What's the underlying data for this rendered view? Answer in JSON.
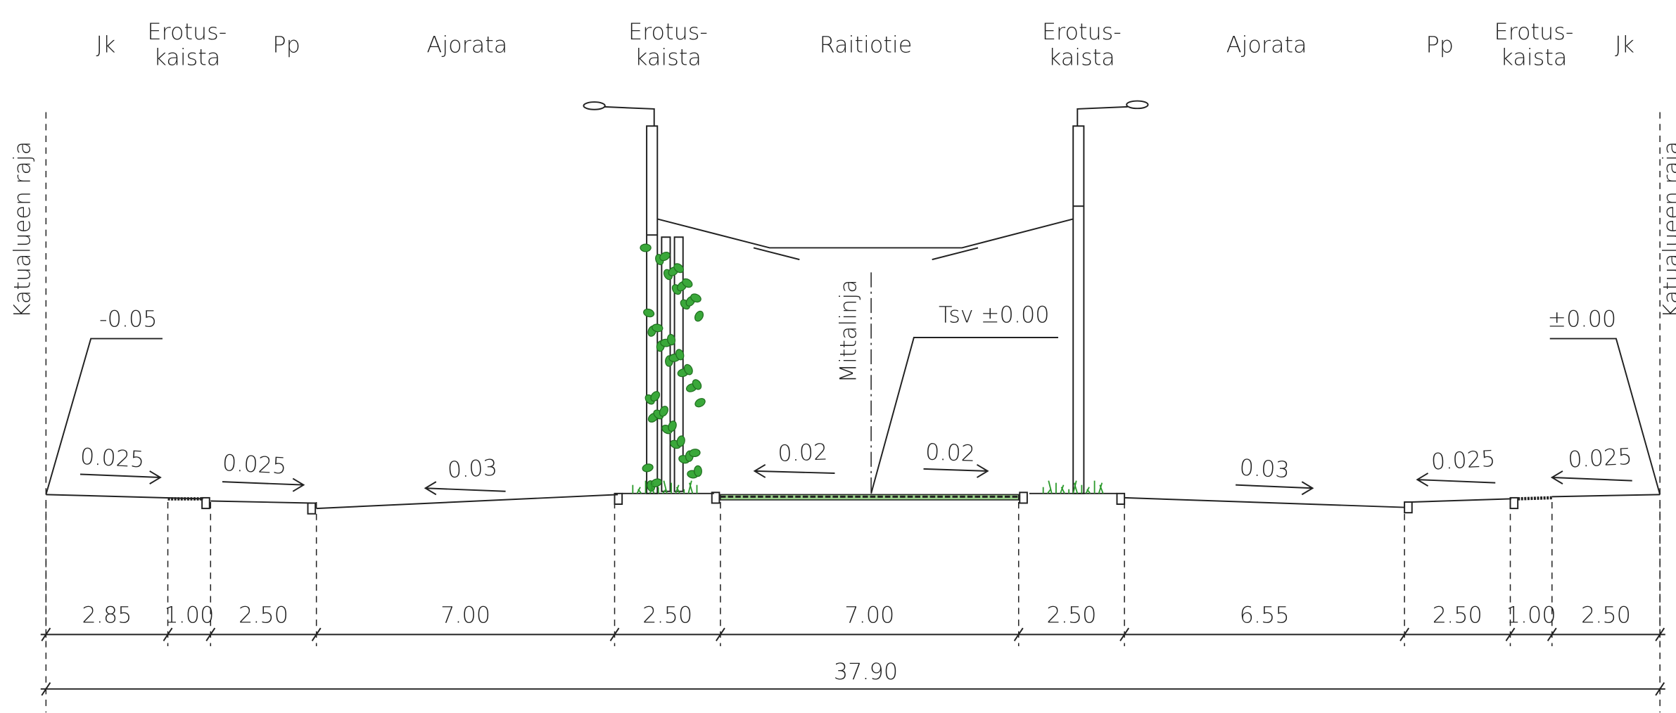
{
  "zones": [
    {
      "lines": [
        "Jk"
      ]
    },
    {
      "lines": [
        "Erotus-",
        "kaista"
      ]
    },
    {
      "lines": [
        "Pp"
      ]
    },
    {
      "lines": [
        "Ajorata"
      ]
    },
    {
      "lines": [
        "Erotus-",
        "kaista"
      ]
    },
    {
      "lines": [
        "Raitiotie"
      ]
    },
    {
      "lines": [
        "Erotus-",
        "kaista"
      ]
    },
    {
      "lines": [
        "Ajorata"
      ]
    },
    {
      "lines": [
        "Pp"
      ]
    },
    {
      "lines": [
        "Erotus-",
        "kaista"
      ]
    },
    {
      "lines": [
        "Jk"
      ]
    }
  ],
  "boundary_labels": [
    "Katualueen raja",
    "Katualueen raja"
  ],
  "elevations": [
    "-0.05",
    "Tsv ±0.00",
    "±0.00"
  ],
  "measure_line": "Mittalinja",
  "slopes": [
    "0.025",
    "0.025",
    "0.03",
    "0.02",
    "0.02",
    "0.03",
    "0.025",
    "0.025"
  ],
  "dimensions": [
    "2.85",
    "1.00",
    "2.50",
    "7.00",
    "2.50",
    "7.00",
    "2.50",
    "6.55",
    "2.50",
    "1.00",
    "2.50"
  ],
  "total": "37.90"
}
